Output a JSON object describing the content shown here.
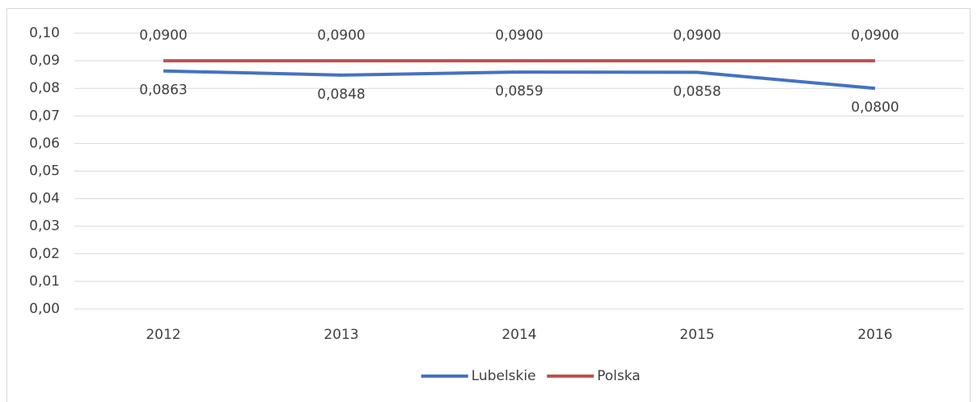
{
  "chart_data": {
    "type": "line",
    "categories": [
      "2012",
      "2013",
      "2014",
      "2015",
      "2016"
    ],
    "series": [
      {
        "name": "Lubelskie",
        "color": "#4472c4",
        "values": [
          0.0863,
          0.0848,
          0.0859,
          0.0858,
          0.08
        ],
        "value_labels": [
          "0,0863",
          "0,0848",
          "0,0859",
          "0,0858",
          "0,0800"
        ],
        "label_position": "below"
      },
      {
        "name": "Polska",
        "color": "#c0504d",
        "values": [
          0.09,
          0.09,
          0.09,
          0.09,
          0.09
        ],
        "value_labels": [
          "0,0900",
          "0,0900",
          "0,0900",
          "0,0900",
          "0,0900"
        ],
        "label_position": "above"
      }
    ],
    "ylim": [
      0,
      0.1
    ],
    "yticks": [
      {
        "value": 0,
        "label": "0,00"
      },
      {
        "value": 0.01,
        "label": "0,01"
      },
      {
        "value": 0.02,
        "label": "0,02"
      },
      {
        "value": 0.03,
        "label": "0,03"
      },
      {
        "value": 0.04,
        "label": "0,04"
      },
      {
        "value": 0.05,
        "label": "0,05"
      },
      {
        "value": 0.06,
        "label": "0,06"
      },
      {
        "value": 0.07,
        "label": "0,07"
      },
      {
        "value": 0.08,
        "label": "0,08"
      },
      {
        "value": 0.09,
        "label": "0,09"
      },
      {
        "value": 0.1,
        "label": "0,10"
      }
    ],
    "grid": true,
    "legend": "bottom"
  }
}
